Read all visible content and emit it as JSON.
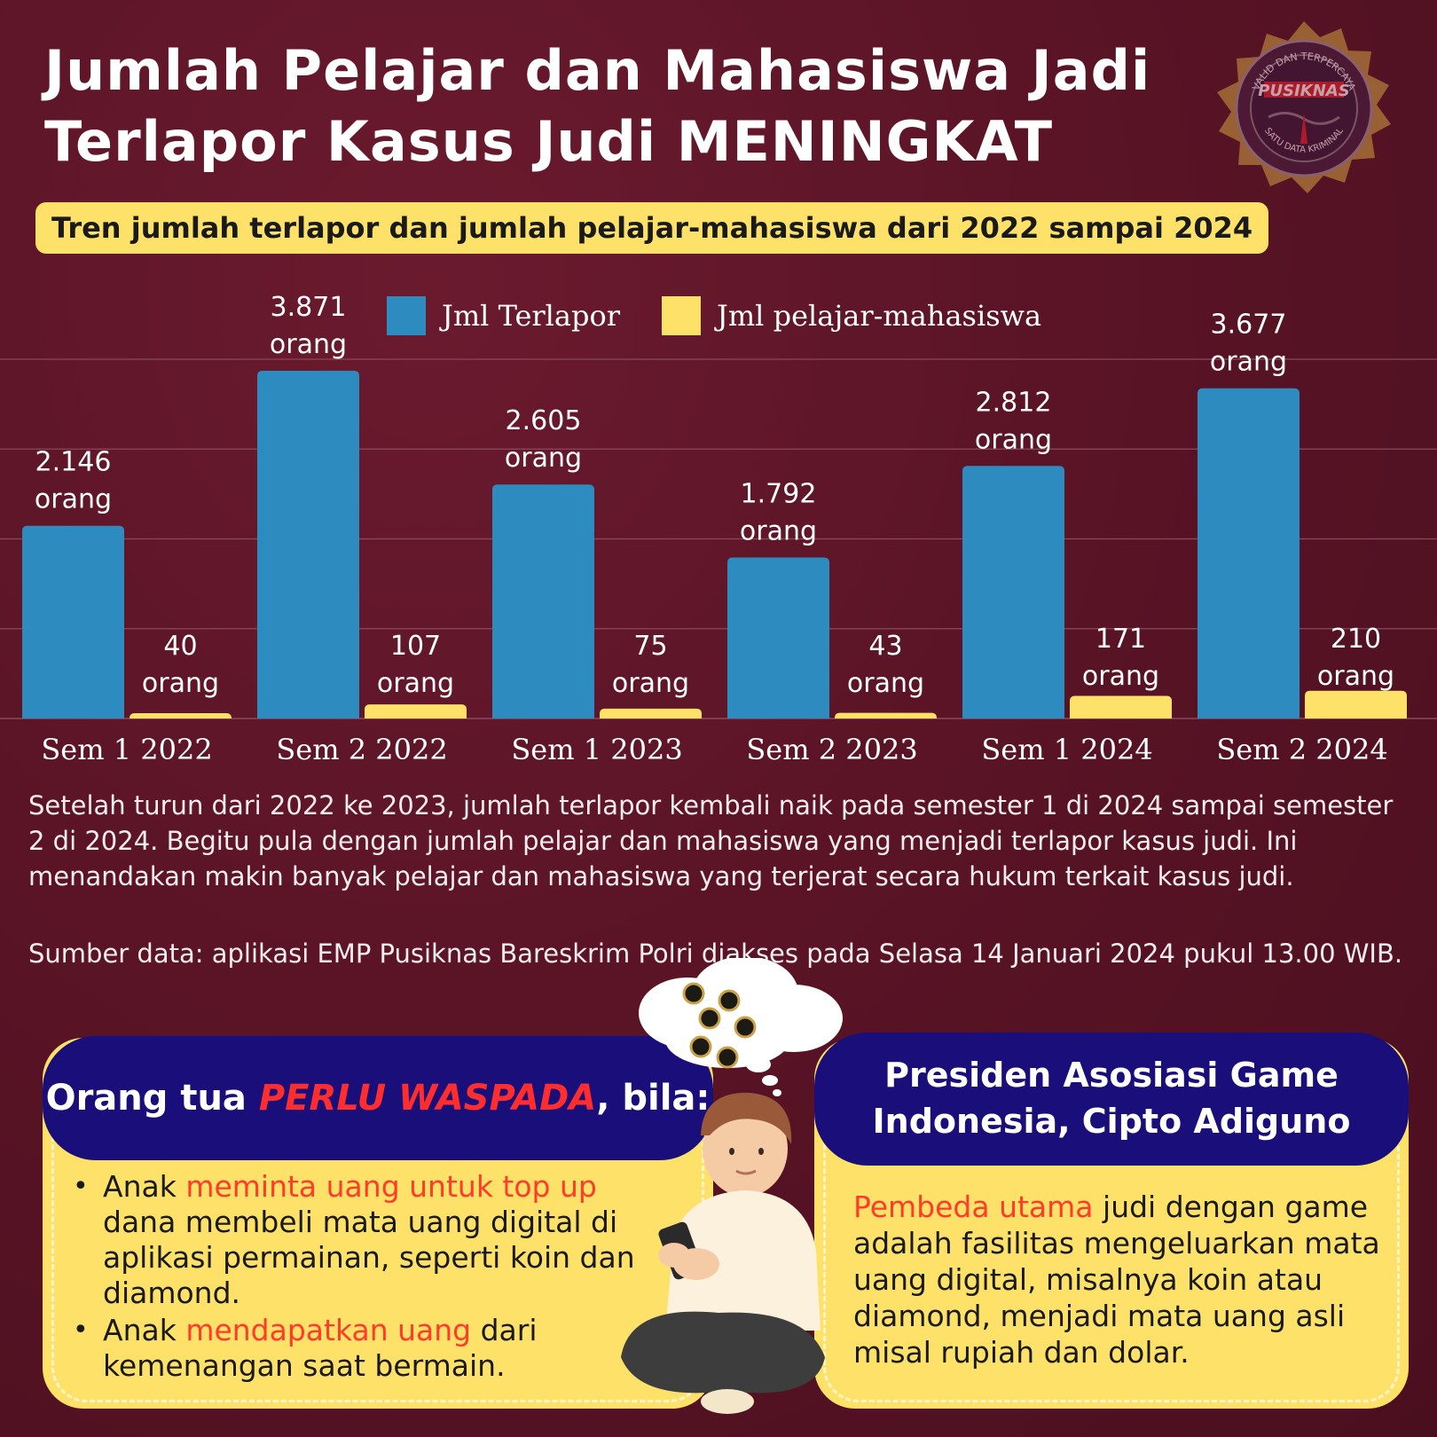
{
  "title_line1": "Jumlah Pelajar dan Mahasiswa Jadi",
  "title_line2": "Terlapor Kasus Judi MENINGKAT",
  "subtitle": "Tren jumlah terlapor dan jumlah pelajar-mahasiswa dari 2022 sampai 2024",
  "logo": {
    "arc_top": "VALID DAN TERPERCAYA",
    "name": "PUSIKNAS",
    "arc_bottom": "SATU DATA KRIMINAL"
  },
  "colors": {
    "background": "#5a1426",
    "terlapor": "#2e8bc0",
    "pelajar": "#fde168",
    "panel_head": "#1a0f7a",
    "panel_body": "#fde168",
    "highlight_red": "#ff2d2d"
  },
  "chart_data": {
    "type": "bar",
    "categories": [
      "Sem 1 2022",
      "Sem 2 2022",
      "Sem 1 2023",
      "Sem 2 2023",
      "Sem 1 2024",
      "Sem 2 2024"
    ],
    "series": [
      {
        "name": "Jml Terlapor",
        "values": [
          2146,
          3871,
          2605,
          1792,
          2812,
          3677
        ],
        "labels": [
          "2.146",
          "3.871",
          "2.605",
          "1.792",
          "2.812",
          "3.677"
        ]
      },
      {
        "name": "Jml pelajar-mahasiswa",
        "values": [
          40,
          107,
          75,
          43,
          171,
          210
        ],
        "labels": [
          "40",
          "107",
          "75",
          "43",
          "171",
          "210"
        ]
      }
    ],
    "unit_label": "orang",
    "ylim": [
      0,
      4000
    ],
    "grid": true,
    "legend": "top"
  },
  "narrative": "Setelah turun dari 2022 ke 2023, jumlah terlapor kembali naik pada semester 1 di 2024 sampai semester 2 di 2024. Begitu pula dengan jumlah pelajar dan mahasiswa yang menjadi terlapor kasus judi. Ini menandakan makin banyak pelajar dan mahasiswa yang terjerat secara hukum terkait kasus judi.",
  "source": "Sumber data: aplikasi EMP Pusiknas Bareskrim Polri diakses pada Selasa 14 Januari 2024 pukul 13.00 WIB.",
  "left_panel": {
    "head_pre": "Orang tua ",
    "head_emph": "PERLU WASPADA",
    "head_post": ", bila:",
    "items": [
      {
        "pre": "Anak ",
        "emph": "meminta uang untuk top up",
        "post": " dana membeli mata uang digital di aplikasi permainan, seperti koin dan diamond."
      },
      {
        "pre": "Anak ",
        "emph": "mendapatkan uang",
        "post": " dari kemenangan saat bermain."
      }
    ]
  },
  "right_panel": {
    "head_line1": "Presiden Asosiasi Game",
    "head_line2": "Indonesia, Cipto Adiguno",
    "emph": "Pembeda utama",
    "text": " judi dengan game adalah fasilitas mengeluarkan mata uang digital, misalnya koin atau diamond, menjadi mata uang asli misal rupiah dan dolar."
  }
}
